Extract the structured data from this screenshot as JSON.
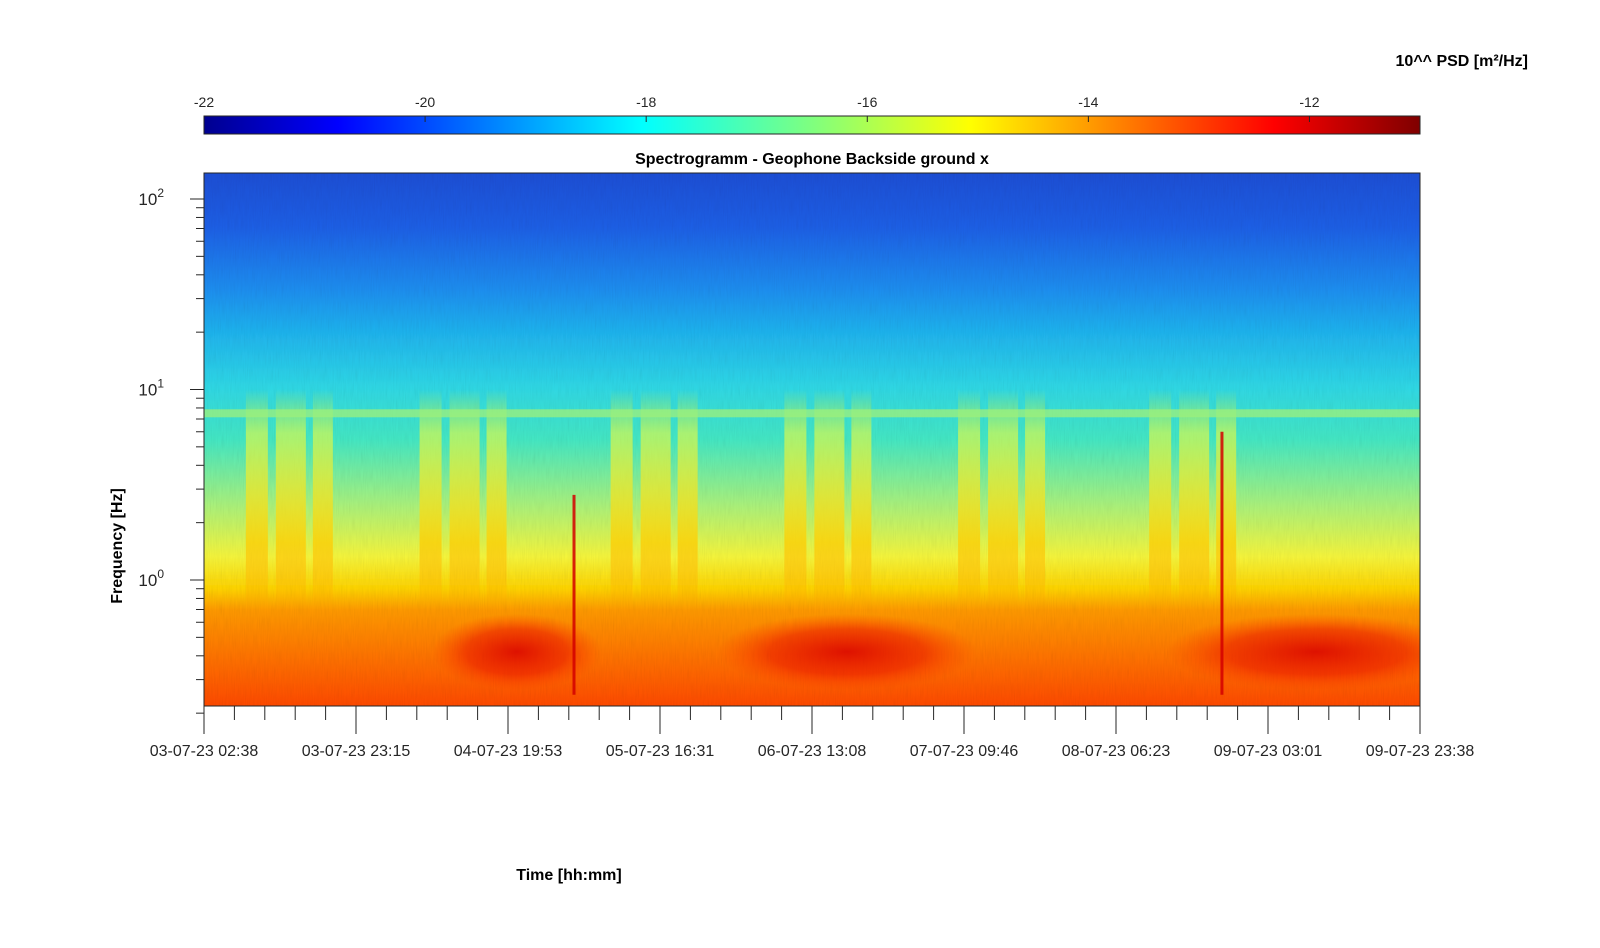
{
  "chart_data": {
    "type": "heatmap",
    "title": "Spectrogramm - Geophone Backside ground x",
    "xlabel": "Time [hh:mm]",
    "ylabel": "Frequency [Hz]",
    "y_scale": "log",
    "ylim": [
      0.2,
      125
    ],
    "y_ticks": [
      {
        "value": 1,
        "base": "10",
        "exp": "0"
      },
      {
        "value": 10,
        "base": "10",
        "exp": "1"
      },
      {
        "value": 100,
        "base": "10",
        "exp": "2"
      }
    ],
    "x_tick_labels": [
      "03-07-23 02:38",
      "03-07-23 23:15",
      "04-07-23 19:53",
      "05-07-23 16:31",
      "06-07-23 13:08",
      "07-07-23 09:46",
      "08-07-23 06:23",
      "09-07-23 03:01",
      "09-07-23 23:38"
    ],
    "colorbar": {
      "label": "10^^ PSD [m²/Hz]",
      "range": [
        -22,
        -11
      ],
      "ticks": [
        "-22",
        "-20",
        "-18",
        "-16",
        "-14",
        "-12"
      ],
      "colormap": "jet",
      "placement": "top"
    },
    "features": {
      "constant_line_hz": 7.5,
      "low_frequency_band_hz": [
        0.2,
        0.8
      ],
      "daily_activity_bursts_day_index": [
        0.5,
        1.5,
        2.6,
        3.6,
        4.6,
        5.7
      ]
    }
  }
}
